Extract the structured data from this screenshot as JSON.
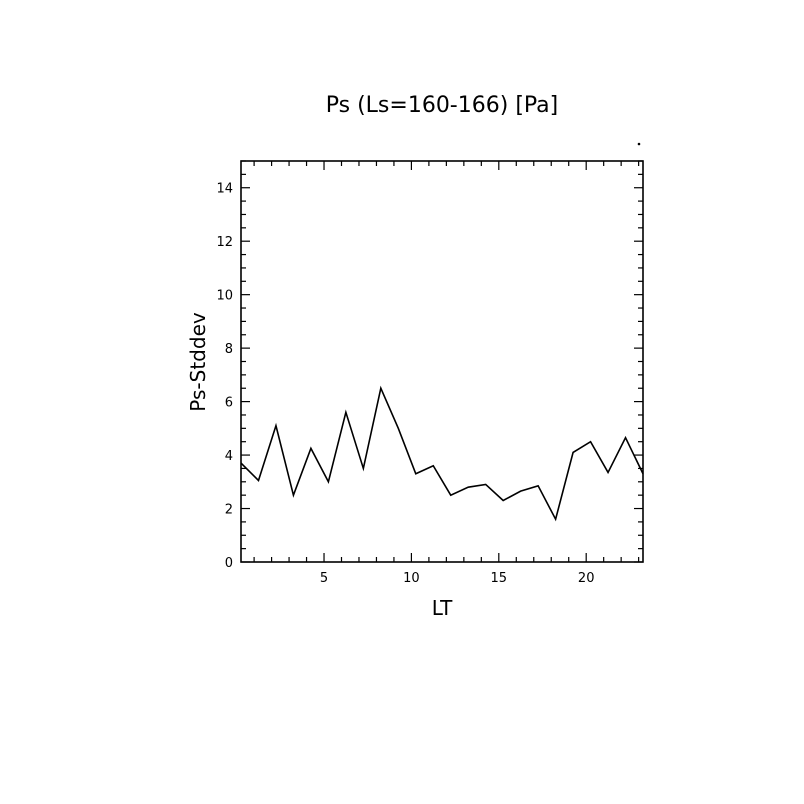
{
  "chart_data": {
    "type": "line",
    "title": "Ps (Ls=160-166) [Pa]",
    "xlabel": "LT",
    "ylabel": "Ps-Stddev",
    "xlim": [
      0.25,
      23.25
    ],
    "ylim": [
      0,
      15
    ],
    "x_ticks": [
      5,
      10,
      15,
      20
    ],
    "y_ticks": [
      0,
      2,
      4,
      6,
      8,
      10,
      12,
      14
    ],
    "grid": false,
    "series": [
      {
        "x": [
          0.25,
          1.25,
          2.25,
          3.25,
          4.25,
          5.25,
          6.25,
          7.25,
          8.25,
          9.25,
          10.25,
          11.25,
          12.25,
          13.25,
          14.25,
          15.25,
          16.25,
          17.25,
          18.25,
          19.25,
          20.25,
          21.25,
          22.25,
          23.25
        ],
        "values": [
          3.7,
          3.05,
          5.1,
          2.5,
          4.25,
          3.0,
          5.6,
          3.5,
          6.5,
          5.0,
          3.3,
          3.6,
          2.5,
          2.8,
          2.9,
          2.3,
          2.65,
          2.85,
          1.6,
          4.1,
          4.5,
          3.35,
          4.65,
          3.3
        ]
      }
    ]
  }
}
